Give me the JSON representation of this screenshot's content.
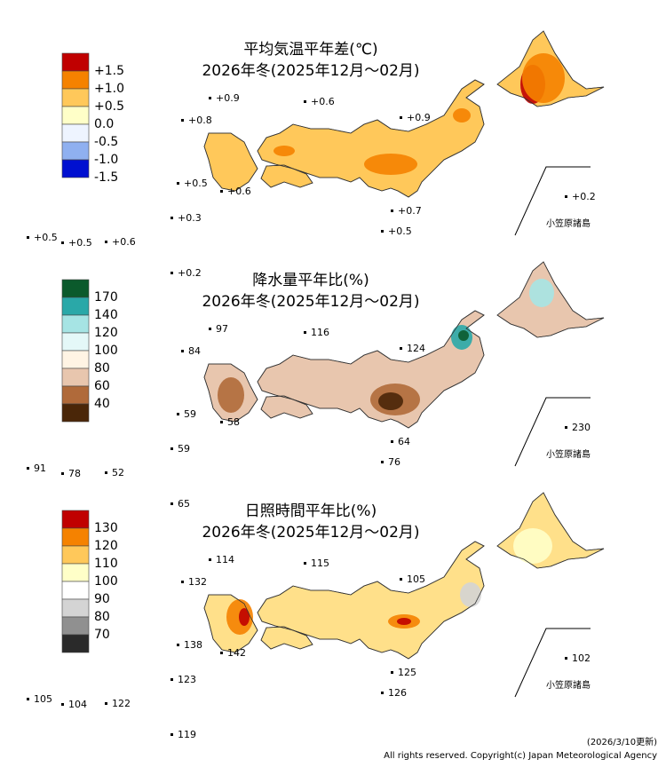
{
  "panels": [
    {
      "title": "平均気温平年差(℃)",
      "subtitle": "2026年冬(2025年12月〜02月)",
      "legend": [
        {
          "label": "+1.5",
          "color": "#c00000"
        },
        {
          "label": "+1.0",
          "color": "#f58200"
        },
        {
          "label": "+0.5",
          "color": "#ffc85a"
        },
        {
          "label": "0.0",
          "color": "#ffffc8"
        },
        {
          "label": "-0.5",
          "color": "#eef4ff"
        },
        {
          "label": "-1.0",
          "color": "#8fb0f0"
        },
        {
          "label": "-1.5",
          "color": "#0010d0"
        }
      ],
      "stations": [
        "+0.9",
        "+0.6",
        "+0.8",
        "+0.9",
        "+0.5",
        "+0.6",
        "+0.3",
        "+0.5",
        "+0.5",
        "+0.6",
        "+0.7",
        "+0.5",
        "+0.2",
        "+0.2"
      ],
      "region_label": "小笠原諸島"
    },
    {
      "title": "降水量平年比(%)",
      "subtitle": "2026年冬(2025年12月〜02月)",
      "legend": [
        {
          "label": "170",
          "color": "#0b5a2c"
        },
        {
          "label": "140",
          "color": "#2aa8a8"
        },
        {
          "label": "120",
          "color": "#a6e4e4"
        },
        {
          "label": "100",
          "color": "#e4f8f8"
        },
        {
          "label": "80",
          "color": "#fff4e4"
        },
        {
          "label": "60",
          "color": "#e8c6ae"
        },
        {
          "label": "40",
          "color": "#b06a3a"
        },
        {
          "label": "",
          "color": "#4a2608"
        }
      ],
      "stations": [
        "97",
        "116",
        "84",
        "124",
        "59",
        "58",
        "59",
        "91",
        "78",
        "52",
        "64",
        "76",
        "230",
        "65"
      ],
      "region_label": "小笠原諸島"
    },
    {
      "title": "日照時間平年比(%)",
      "subtitle": "2026年冬(2025年12月〜02月)",
      "legend": [
        {
          "label": "130",
          "color": "#c00000"
        },
        {
          "label": "120",
          "color": "#f58200"
        },
        {
          "label": "110",
          "color": "#ffc85a"
        },
        {
          "label": "100",
          "color": "#ffffc8"
        },
        {
          "label": "90",
          "color": "#ffffff"
        },
        {
          "label": "80",
          "color": "#d4d4d4"
        },
        {
          "label": "70",
          "color": "#909090"
        },
        {
          "label": "",
          "color": "#2a2a2a"
        }
      ],
      "stations": [
        "114",
        "115",
        "132",
        "105",
        "138",
        "142",
        "123",
        "105",
        "104",
        "122",
        "125",
        "126",
        "102",
        "119"
      ],
      "region_label": "小笠原諸島"
    }
  ],
  "footer": {
    "date": "(2026/3/10更新)",
    "copyright": "All rights reserved. Copyright(c) Japan Meteorological Agency"
  }
}
